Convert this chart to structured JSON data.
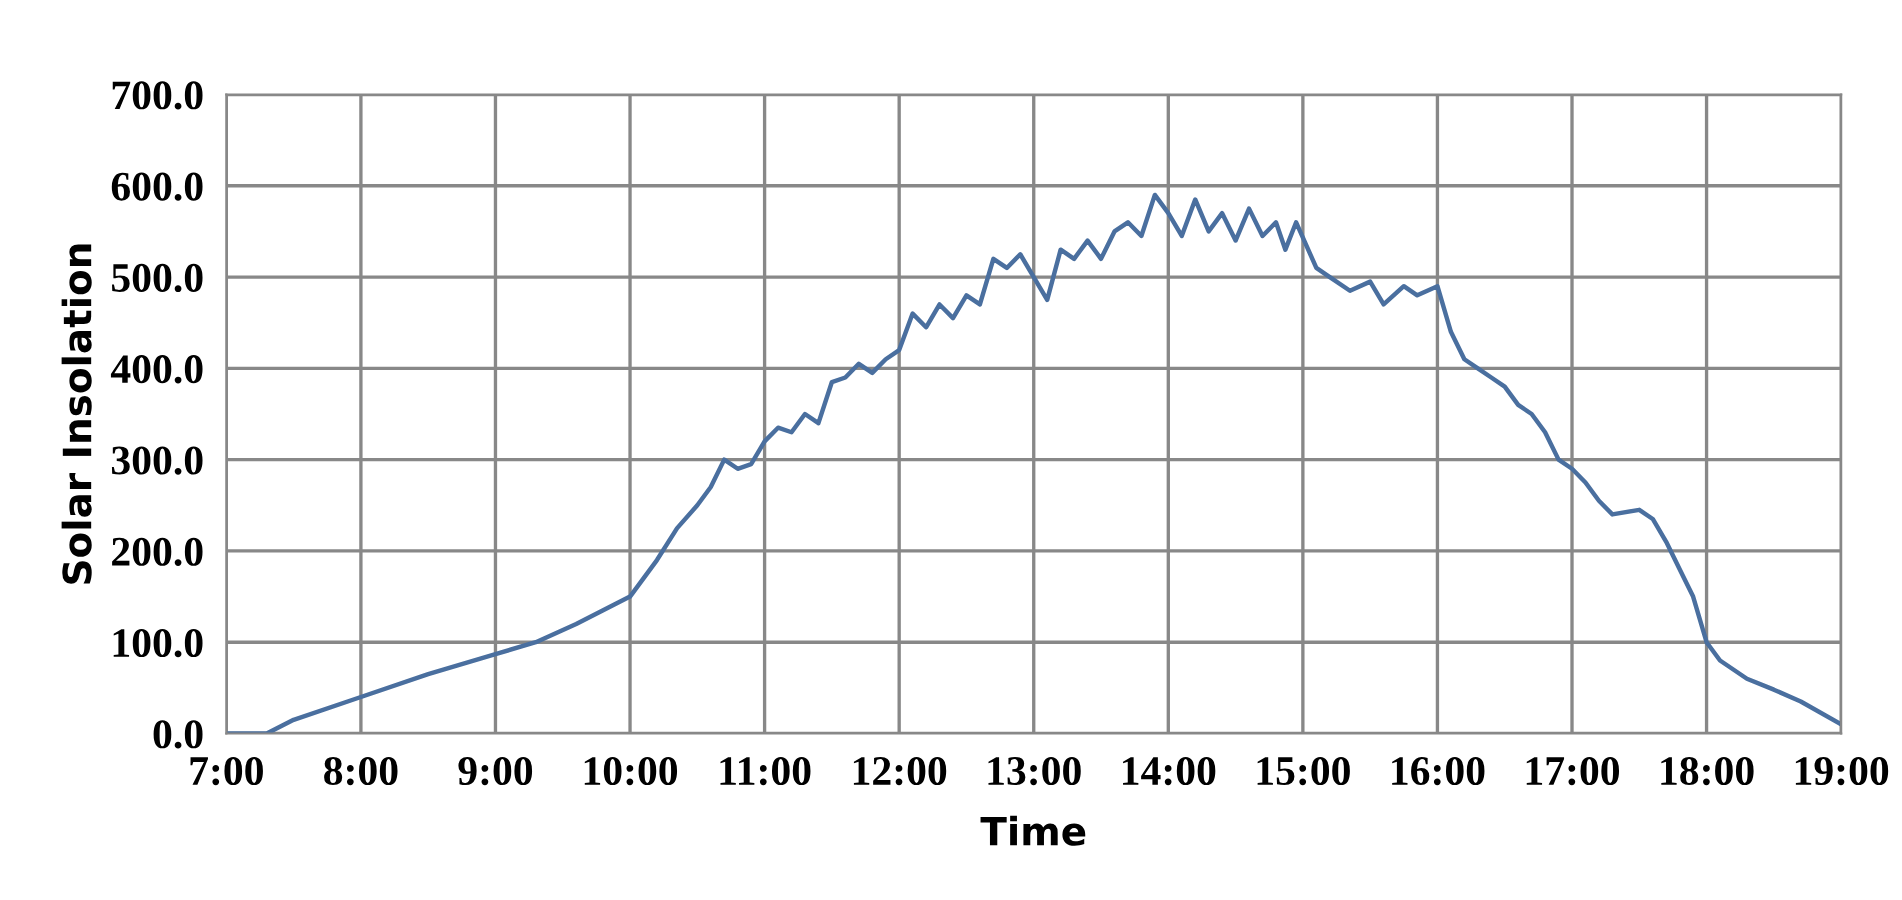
{
  "chart_data": {
    "type": "line",
    "xlabel": "Time",
    "ylabel": "Solar Insolation",
    "xlim": [
      7,
      19
    ],
    "ylim": [
      0,
      700
    ],
    "xticks": [
      {
        "value": 7,
        "label": "7:00"
      },
      {
        "value": 8,
        "label": "8:00"
      },
      {
        "value": 9,
        "label": "9:00"
      },
      {
        "value": 10,
        "label": "10:00"
      },
      {
        "value": 11,
        "label": "11:00"
      },
      {
        "value": 12,
        "label": "12:00"
      },
      {
        "value": 13,
        "label": "13:00"
      },
      {
        "value": 14,
        "label": "14:00"
      },
      {
        "value": 15,
        "label": "15:00"
      },
      {
        "value": 16,
        "label": "16:00"
      },
      {
        "value": 17,
        "label": "17:00"
      },
      {
        "value": 18,
        "label": "18:00"
      },
      {
        "value": 19,
        "label": "19:00"
      }
    ],
    "yticks": [
      {
        "value": 0,
        "label": "0.0"
      },
      {
        "value": 100,
        "label": "100.0"
      },
      {
        "value": 200,
        "label": "200.0"
      },
      {
        "value": 300,
        "label": "300.0"
      },
      {
        "value": 400,
        "label": "400.0"
      },
      {
        "value": 500,
        "label": "500.0"
      },
      {
        "value": 600,
        "label": "600.0"
      },
      {
        "value": 700,
        "label": "700.0"
      }
    ],
    "grid": true,
    "marker": "none",
    "line_style": "solid",
    "series": [
      {
        "color": "#4a6f9f",
        "x": [
          7,
          7.3,
          7.5,
          8,
          8.5,
          9,
          9.3,
          9.6,
          10,
          10.2,
          10.35,
          10.5,
          10.6,
          10.7,
          10.8,
          10.9,
          11.0,
          11.1,
          11.2,
          11.3,
          11.4,
          11.5,
          11.6,
          11.7,
          11.8,
          11.9,
          12.0,
          12.1,
          12.2,
          12.3,
          12.4,
          12.5,
          12.6,
          12.7,
          12.8,
          12.9,
          13.0,
          13.1,
          13.2,
          13.3,
          13.4,
          13.5,
          13.6,
          13.7,
          13.8,
          13.9,
          14.0,
          14.1,
          14.2,
          14.3,
          14.4,
          14.5,
          14.6,
          14.7,
          14.8,
          14.87,
          14.95,
          15.1,
          15.2,
          15.35,
          15.5,
          15.6,
          15.75,
          15.85,
          16.0,
          16.1,
          16.2,
          16.3,
          16.4,
          16.5,
          16.6,
          16.7,
          16.8,
          16.9,
          17.0,
          17.1,
          17.2,
          17.3,
          17.5,
          17.6,
          17.7,
          17.8,
          17.9,
          18.0,
          18.1,
          18.3,
          18.5,
          18.7,
          19.0
        ],
        "values": [
          0,
          0,
          15,
          40,
          65,
          87,
          100,
          120,
          150,
          190,
          225,
          250,
          270,
          300,
          290,
          295,
          320,
          335,
          330,
          350,
          340,
          385,
          390,
          405,
          395,
          410,
          420,
          460,
          445,
          470,
          455,
          480,
          470,
          520,
          510,
          525,
          500,
          475,
          530,
          520,
          540,
          520,
          550,
          560,
          545,
          590,
          570,
          545,
          585,
          550,
          570,
          540,
          575,
          545,
          560,
          530,
          560,
          510,
          500,
          485,
          495,
          470,
          490,
          480,
          490,
          440,
          410,
          400,
          390,
          380,
          360,
          350,
          330,
          300,
          290,
          275,
          255,
          240,
          245,
          235,
          210,
          180,
          150,
          100,
          80,
          60,
          48,
          35,
          10
        ]
      }
    ]
  }
}
